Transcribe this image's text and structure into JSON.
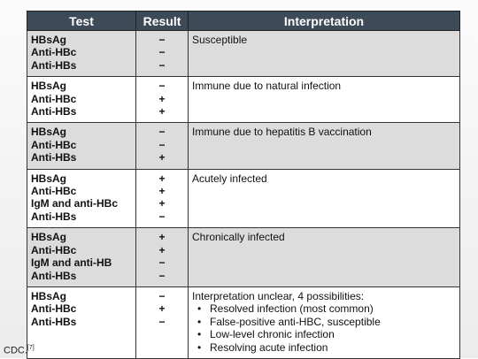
{
  "table": {
    "header": [
      "Test",
      "Result",
      "Interpretation"
    ],
    "rows": [
      {
        "tests": [
          "HBsAg",
          "Anti-HBc",
          "Anti-HBs"
        ],
        "results": [
          "−",
          "−",
          "−"
        ],
        "interpretation": "Susceptible"
      },
      {
        "tests": [
          "HBsAg",
          "Anti-HBc",
          "Anti-HBs"
        ],
        "results": [
          "−",
          "+",
          "+"
        ],
        "interpretation": "Immune due to natural infection"
      },
      {
        "tests": [
          "HBsAg",
          "Anti-HBc",
          "Anti-HBs"
        ],
        "results": [
          "−",
          "−",
          "+"
        ],
        "interpretation": "Immune due to hepatitis B vaccination"
      },
      {
        "tests": [
          "HBsAg",
          "Anti-HBc",
          "IgM and anti-HBc",
          "Anti-HBs"
        ],
        "results": [
          "+",
          "+",
          "+",
          "−"
        ],
        "interpretation": "Acutely infected"
      },
      {
        "tests": [
          "HBsAg",
          "Anti-HBc",
          "IgM and anti-HB",
          "Anti-HBs"
        ],
        "results": [
          "+",
          "+",
          "−",
          "−"
        ],
        "interpretation": "Chronically infected"
      },
      {
        "tests": [
          "HBsAg",
          "Anti-HBc",
          "Anti-HBs"
        ],
        "results": [
          "−",
          "+",
          "−"
        ],
        "interpretation": "Interpretation unclear, 4 possibilities:",
        "bullets": [
          "Resolved infection (most common)",
          "False-positive anti-HBC, susceptible",
          "Low-level chronic infection",
          "Resolving acute infection"
        ]
      }
    ]
  },
  "footer": {
    "source": "CDC.",
    "ref": "[7]"
  }
}
